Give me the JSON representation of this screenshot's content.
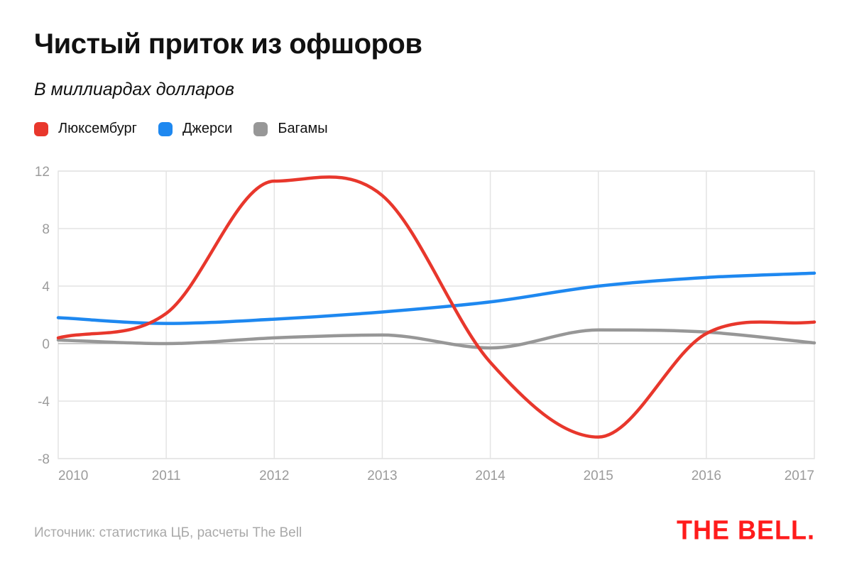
{
  "header": {
    "title": "Чистый приток из офшоров",
    "subtitle": "В миллиардах долларов"
  },
  "footer": {
    "source": "Источник: статистика ЦБ, расчеты The Bell",
    "logo": "THE BELL."
  },
  "chart_data": {
    "type": "line",
    "title": "Чистый приток из офшоров",
    "ylabel": "В миллиардах долларов",
    "xlabel": "",
    "x": [
      2010,
      2011,
      2012,
      2013,
      2014,
      2015,
      2016,
      2017
    ],
    "x_tick_labels": [
      "2010",
      "2011",
      "2012",
      "2013",
      "2014",
      "2015",
      "2016",
      "2017"
    ],
    "y_ticks": [
      12,
      8,
      4,
      0,
      -4,
      -8
    ],
    "y_tick_labels": [
      "12",
      "8",
      "4",
      "0",
      "-4",
      "-8"
    ],
    "ylim": [
      -8,
      12
    ],
    "grid": true,
    "legend_position": "top-left",
    "series": [
      {
        "name": "Люксембург",
        "color": "#e8372c",
        "values": [
          0.4,
          2.1,
          11.3,
          10.3,
          -1.3,
          -6.5,
          0.7,
          1.5
        ]
      },
      {
        "name": "Джерси",
        "color": "#1e88f0",
        "values": [
          1.8,
          1.4,
          1.7,
          2.2,
          2.9,
          4.0,
          4.6,
          4.9
        ]
      },
      {
        "name": "Багамы",
        "color": "#979797",
        "values": [
          0.25,
          0.0,
          0.4,
          0.6,
          -0.3,
          0.95,
          0.8,
          0.05
        ]
      }
    ]
  }
}
